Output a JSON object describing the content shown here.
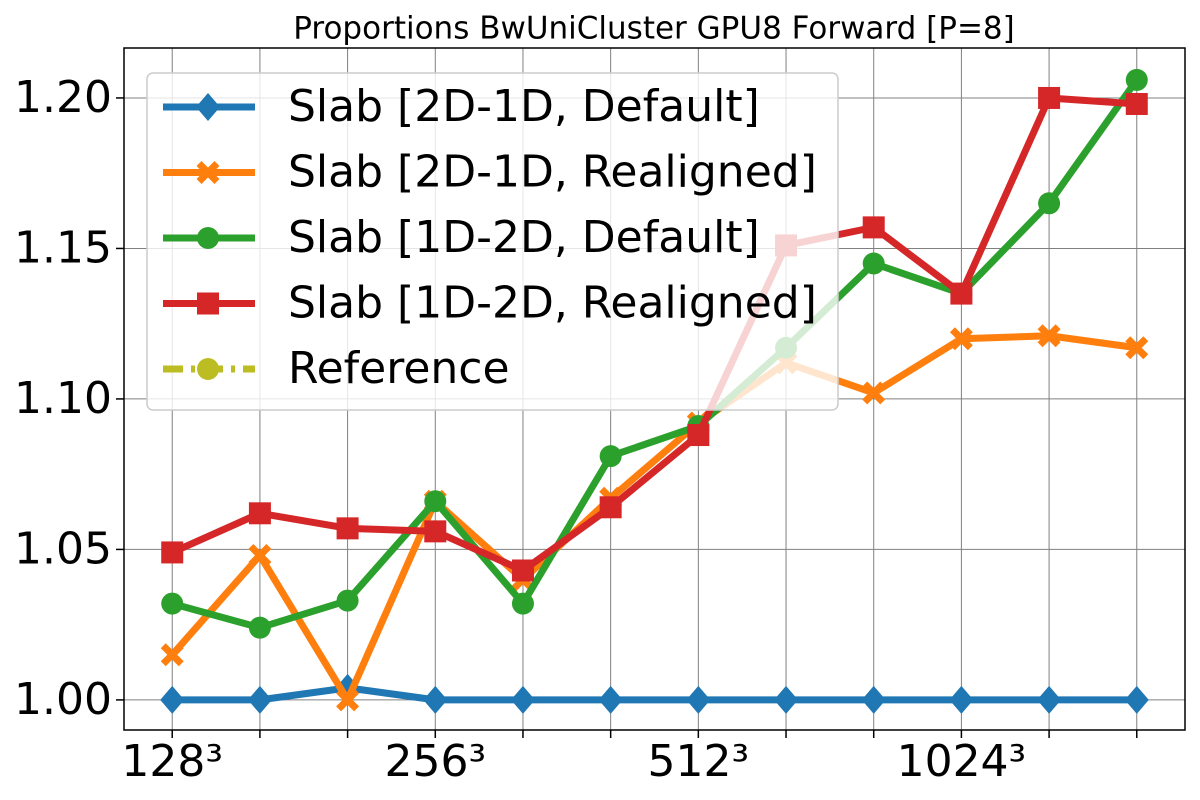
{
  "chart_data": {
    "type": "line",
    "title": "Proportions BwUniCluster GPU8 Forward [P=8]",
    "categories": [
      "128³",
      null,
      null,
      "256³",
      null,
      null,
      "512³",
      null,
      null,
      "1024³",
      null,
      null
    ],
    "series": [
      {
        "name": "Slab [2D-1D, Default]",
        "color": "#1f77b4",
        "marker": "diamond",
        "values": [
          1.0,
          1.0,
          1.004,
          1.0,
          1.0,
          1.0,
          1.0,
          1.0,
          1.0,
          1.0,
          1.0,
          1.0
        ]
      },
      {
        "name": "Slab [2D-1D, Realigned]",
        "color": "#ff7f0e",
        "marker": "x",
        "values": [
          1.015,
          1.048,
          1.0,
          1.066,
          1.04,
          1.067,
          1.092,
          1.112,
          1.102,
          1.12,
          1.121,
          1.117
        ]
      },
      {
        "name": "Slab [1D-2D, Default]",
        "color": "#2ca02c",
        "marker": "circle",
        "values": [
          1.032,
          1.024,
          1.033,
          1.066,
          1.032,
          1.081,
          1.091,
          1.117,
          1.145,
          1.135,
          1.165,
          1.206
        ]
      },
      {
        "name": "Slab [1D-2D, Realigned]",
        "color": "#d62728",
        "marker": "square",
        "values": [
          1.049,
          1.062,
          1.057,
          1.056,
          1.043,
          1.064,
          1.088,
          1.151,
          1.157,
          1.135,
          1.2,
          1.198
        ]
      },
      {
        "name": "Reference",
        "color": "#bcbd22",
        "marker": "circle",
        "dashed": true,
        "values": [
          null,
          null,
          null,
          null,
          null,
          null,
          null,
          null,
          null,
          null,
          null,
          null
        ]
      }
    ],
    "ylim": [
      0.99,
      1.2166
    ],
    "yticks": [
      {
        "value": 1.0,
        "label": "1.00"
      },
      1.05,
      {
        "value": 1.1,
        "label": "1.10"
      },
      1.15,
      {
        "value": 1.2,
        "label": "1.20"
      }
    ],
    "grid": true,
    "legend": "upper left"
  }
}
